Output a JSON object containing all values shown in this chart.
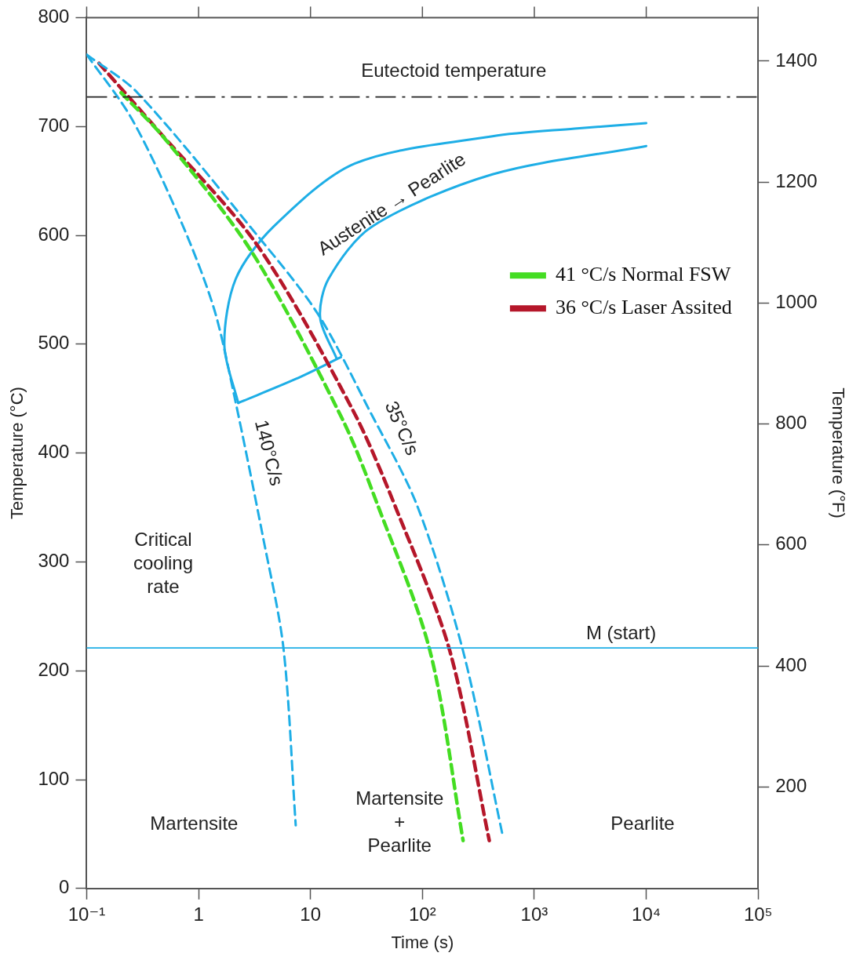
{
  "chart_data": {
    "type": "line",
    "xlabel": "Time (s)",
    "ylabel": "Temperature (°C)",
    "y2label": "Temperature (°F)",
    "log": "x",
    "xlim": [
      0.1,
      100000
    ],
    "xticks": [
      {
        "value": 0.1,
        "label": "10⁻¹"
      },
      1,
      10,
      {
        "value": 100,
        "label": "10²"
      },
      {
        "value": 1000,
        "label": "10³"
      },
      {
        "value": 10000,
        "label": "10⁴"
      },
      {
        "value": 100000,
        "label": "10⁵"
      }
    ],
    "ylim": [
      0,
      800
    ],
    "yticks": [
      0,
      100,
      200,
      300,
      400,
      500,
      600,
      700,
      800
    ],
    "y2lim": [
      32,
      1472
    ],
    "y2ticks": [
      200,
      400,
      600,
      800,
      1000,
      1200,
      1400
    ],
    "grid": false,
    "legend": "right",
    "marker": "none",
    "series": [
      {
        "color": "#1eaee6",
        "line_style": "dashed",
        "x": [
          0.1,
          0.253,
          0.695,
          1.37,
          2.08,
          3.76,
          5.73,
          7.38
        ],
        "values": [
          766,
          707,
          613,
          533,
          453,
          323,
          221,
          58
        ]
      },
      {
        "color": "#1eaee6",
        "line_style": "dashed",
        "x": [
          0.1,
          0.284,
          3.34,
          11.6,
          33.7,
          89.5,
          231,
          518
        ],
        "values": [
          766,
          731,
          600,
          528,
          439,
          352,
          218,
          50
        ]
      },
      {
        "name": "41 °C/s Normal FSW",
        "color": "#44dd22",
        "line_style": "dashed",
        "x": [
          0.203,
          0.497,
          3.02,
          19.3,
          39.9,
          117,
          231
        ],
        "values": [
          731,
          689,
          584,
          431,
          352,
          218,
          44
        ]
      },
      {
        "name": "36 °C/s Laser Assited",
        "color": "#b5172a",
        "line_style": "dashed",
        "x": [
          0.129,
          0.42,
          3.34,
          24,
          59.8,
          176,
          396
        ],
        "values": [
          758,
          698,
          591,
          439,
          346,
          218,
          44
        ]
      },
      {
        "color": "#1eaee6",
        "line_style": "solid",
        "x": [
          2.26,
          1.7,
          2.15,
          4.68,
          25,
          423,
          2285,
          10000
        ],
        "values": [
          446,
          499,
          560,
          608,
          666,
          691,
          698,
          703
        ]
      },
      {
        "color": "#1eaee6",
        "line_style": "solid",
        "x": [
          17.1,
          12.2,
          14.5,
          35.4,
          423,
          10000
        ],
        "values": [
          487,
          524,
          560,
          608,
          656,
          682
        ]
      },
      {
        "color": "#1eaee6",
        "line_style": "solid",
        "x": [
          2.26,
          7.38,
          18.7
        ],
        "values": [
          446,
          468,
          488
        ]
      }
    ],
    "ref_lines": [
      {
        "axis": "y",
        "value": 727,
        "label": "Eutectoid temperature",
        "color": "#222222",
        "line_style": "dashed"
      },
      {
        "axis": "y",
        "value": 221,
        "label": "M (start)",
        "color": "#1eaee6",
        "line_style": "solid"
      }
    ],
    "annotations": [
      "Austenite → Pearlite",
      "140°C/s",
      "35°C/s",
      "Critical\ncooling\nrate",
      "Martensite",
      "Martensite\n+\nPearlite",
      "Pearlite"
    ]
  }
}
